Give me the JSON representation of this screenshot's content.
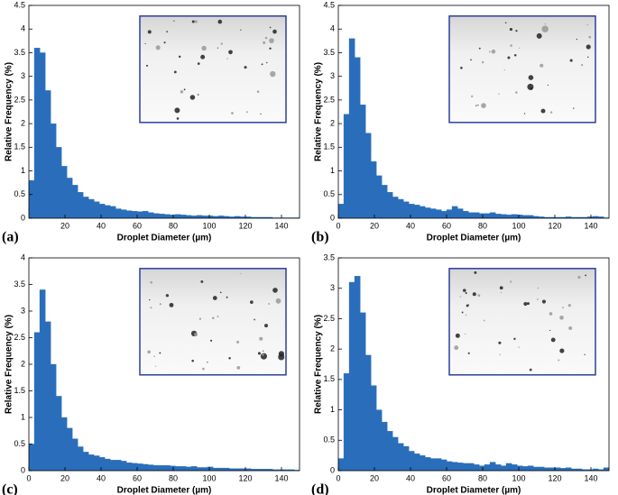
{
  "chart_data": [
    {
      "type": "histogram",
      "label": "(a)",
      "xlabel": "Droplet Diameter (µm)",
      "ylabel": "Relative Frequency (%)",
      "color": "#2a6ebb",
      "bins": [
        0,
        3,
        6,
        9,
        12,
        15,
        18,
        21,
        24,
        27,
        30,
        33,
        36,
        39,
        42,
        45,
        48,
        51,
        54,
        57,
        60,
        63,
        66,
        69,
        72,
        75,
        78,
        81,
        84,
        87,
        90,
        93,
        96,
        99,
        102,
        105,
        108,
        111,
        114,
        117,
        120,
        123,
        126,
        129,
        132,
        135,
        138,
        141,
        144,
        147,
        150
      ],
      "counts": [
        0.8,
        3.6,
        3.5,
        2.7,
        2.0,
        1.5,
        1.1,
        0.85,
        0.7,
        0.55,
        0.45,
        0.4,
        0.35,
        0.3,
        0.27,
        0.25,
        0.2,
        0.18,
        0.16,
        0.15,
        0.14,
        0.15,
        0.12,
        0.1,
        0.09,
        0.08,
        0.07,
        0.08,
        0.07,
        0.06,
        0.05,
        0.06,
        0.05,
        0.05,
        0.04,
        0.05,
        0.04,
        0.03,
        0.04,
        0.03,
        0.03,
        0.02,
        0.02,
        0.02,
        0.02,
        0.01,
        0.01,
        0.01,
        0.01,
        0.01
      ],
      "xlim": [
        0,
        150
      ],
      "ylim": [
        0,
        4.5
      ],
      "xticks": [
        20,
        40,
        60,
        80,
        100,
        120,
        140
      ],
      "yticks": [
        0,
        0.5,
        1,
        1.5,
        2,
        2.5,
        3,
        3.5,
        4,
        4.5
      ]
    },
    {
      "type": "histogram",
      "label": "(b)",
      "xlabel": "Droplet Diameter (µm)",
      "ylabel": "Relative Frequency (%)",
      "color": "#2a6ebb",
      "bins": [
        0,
        3,
        6,
        9,
        12,
        15,
        18,
        21,
        24,
        27,
        30,
        33,
        36,
        39,
        42,
        45,
        48,
        51,
        54,
        57,
        60,
        63,
        66,
        69,
        72,
        75,
        78,
        81,
        84,
        87,
        90,
        93,
        96,
        99,
        102,
        105,
        108,
        111,
        114,
        117,
        120,
        123,
        126,
        129,
        132,
        135,
        138,
        141,
        144,
        147,
        150
      ],
      "counts": [
        0.3,
        2.2,
        3.8,
        3.4,
        2.4,
        1.8,
        1.2,
        0.9,
        0.7,
        0.55,
        0.45,
        0.4,
        0.35,
        0.3,
        0.28,
        0.25,
        0.22,
        0.2,
        0.18,
        0.15,
        0.18,
        0.25,
        0.2,
        0.15,
        0.12,
        0.12,
        0.1,
        0.1,
        0.12,
        0.09,
        0.08,
        0.07,
        0.08,
        0.07,
        0.06,
        0.06,
        0.04,
        0.03,
        0.02,
        0.02,
        0.02,
        0.02,
        0.03,
        0.02,
        0.02,
        0.02,
        0.03,
        0.04,
        0.03,
        0.01
      ],
      "xlim": [
        0,
        150
      ],
      "ylim": [
        0,
        4.5
      ],
      "xticks": [
        0,
        20,
        40,
        60,
        80,
        100,
        120,
        140
      ],
      "yticks": [
        0,
        0.5,
        1,
        1.5,
        2,
        2.5,
        3,
        3.5,
        4,
        4.5
      ]
    },
    {
      "type": "histogram",
      "label": "(c)",
      "xlabel": "Droplet Diameter (µm)",
      "ylabel": "Relative Frequency (%)",
      "color": "#2a6ebb",
      "bins": [
        0,
        3,
        6,
        9,
        12,
        15,
        18,
        21,
        24,
        27,
        30,
        33,
        36,
        39,
        42,
        45,
        48,
        51,
        54,
        57,
        60,
        63,
        66,
        69,
        72,
        75,
        78,
        81,
        84,
        87,
        90,
        93,
        96,
        99,
        102,
        105,
        108,
        111,
        114,
        117,
        120,
        123,
        126,
        129,
        132,
        135,
        138,
        141,
        144,
        147,
        150
      ],
      "counts": [
        0.5,
        2.6,
        3.4,
        2.8,
        2.0,
        1.4,
        1.0,
        0.8,
        0.6,
        0.45,
        0.35,
        0.3,
        0.28,
        0.25,
        0.22,
        0.2,
        0.2,
        0.18,
        0.15,
        0.14,
        0.13,
        0.12,
        0.11,
        0.1,
        0.1,
        0.1,
        0.09,
        0.08,
        0.08,
        0.07,
        0.08,
        0.06,
        0.06,
        0.07,
        0.05,
        0.05,
        0.05,
        0.04,
        0.04,
        0.04,
        0.04,
        0.03,
        0.03,
        0.03,
        0.03,
        0.02,
        0.02,
        0.02,
        0.02,
        0.01
      ],
      "xlim": [
        0,
        150
      ],
      "ylim": [
        0,
        4
      ],
      "xticks": [
        0,
        20,
        40,
        60,
        80,
        100,
        120,
        140
      ],
      "yticks": [
        0,
        0.5,
        1,
        1.5,
        2,
        2.5,
        3,
        3.5,
        4
      ]
    },
    {
      "type": "histogram",
      "label": "(d)",
      "xlabel": "Droplet Diameter (µm)",
      "ylabel": "Relative Frequency (%)",
      "color": "#2a6ebb",
      "bins": [
        0,
        3,
        6,
        9,
        12,
        15,
        18,
        21,
        24,
        27,
        30,
        33,
        36,
        39,
        42,
        45,
        48,
        51,
        54,
        57,
        60,
        63,
        66,
        69,
        72,
        75,
        78,
        81,
        84,
        87,
        90,
        93,
        96,
        99,
        102,
        105,
        108,
        111,
        114,
        117,
        120,
        123,
        126,
        129,
        132,
        135,
        138,
        141,
        144,
        147,
        150
      ],
      "counts": [
        0.2,
        1.6,
        3.1,
        3.2,
        2.6,
        1.9,
        1.4,
        1.0,
        0.8,
        0.65,
        0.55,
        0.45,
        0.4,
        0.32,
        0.28,
        0.25,
        0.22,
        0.2,
        0.2,
        0.18,
        0.15,
        0.14,
        0.13,
        0.12,
        0.12,
        0.1,
        0.08,
        0.1,
        0.14,
        0.1,
        0.08,
        0.12,
        0.1,
        0.08,
        0.07,
        0.08,
        0.06,
        0.06,
        0.05,
        0.05,
        0.05,
        0.04,
        0.05,
        0.03,
        0.03,
        0.02,
        0.02,
        0.03,
        0.02,
        0.05
      ],
      "xlim": [
        0,
        150
      ],
      "ylim": [
        0,
        3.5
      ],
      "xticks": [
        0,
        20,
        40,
        60,
        80,
        100,
        120,
        140
      ],
      "yticks": [
        0,
        0.5,
        1,
        1.5,
        2,
        2.5,
        3,
        3.5
      ]
    }
  ]
}
